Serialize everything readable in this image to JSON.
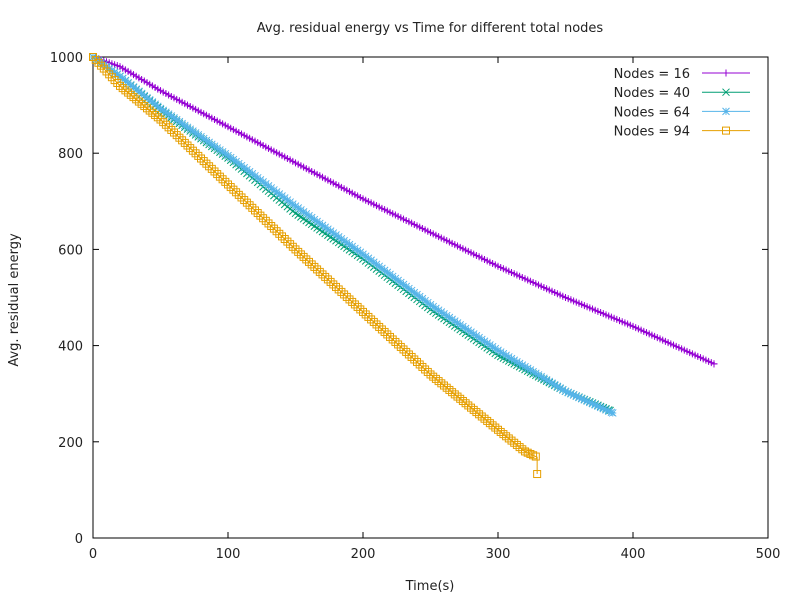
{
  "chart_data": {
    "type": "line",
    "title": "Avg. residual energy vs Time for different total nodes",
    "xlabel": "Time(s)",
    "ylabel": "Avg. residual energy",
    "xlim": [
      0,
      500
    ],
    "ylim": [
      0,
      1000
    ],
    "xticks": [
      "0",
      "100",
      "200",
      "300",
      "400",
      "500"
    ],
    "yticks": [
      "0",
      "200",
      "400",
      "600",
      "800",
      "1000"
    ],
    "grid": false,
    "legend_position": "top-right",
    "series": [
      {
        "name": "Nodes = 16",
        "color": "#9400d3",
        "marker": "plus",
        "x": [
          0,
          20,
          50,
          100,
          150,
          200,
          250,
          300,
          350,
          400,
          460
        ],
        "y": [
          1000,
          980,
          930,
          855,
          780,
          705,
          635,
          565,
          500,
          440,
          362
        ]
      },
      {
        "name": "Nodes = 40",
        "color": "#009e73",
        "marker": "cross",
        "x": [
          0,
          20,
          50,
          100,
          150,
          200,
          250,
          300,
          350,
          383
        ],
        "y": [
          1000,
          960,
          890,
          790,
          675,
          580,
          475,
          380,
          305,
          265
        ]
      },
      {
        "name": "Nodes = 64",
        "color": "#56b4e9",
        "marker": "star",
        "x": [
          0,
          20,
          50,
          100,
          150,
          200,
          250,
          300,
          350,
          385
        ],
        "y": [
          1000,
          960,
          893,
          795,
          690,
          590,
          485,
          390,
          305,
          260
        ]
      },
      {
        "name": "Nodes = 94",
        "color": "#e69f00",
        "marker": "square",
        "x": [
          0,
          20,
          50,
          100,
          150,
          200,
          250,
          300,
          320,
          329,
          329
        ],
        "y": [
          1000,
          940,
          870,
          735,
          600,
          470,
          340,
          225,
          180,
          168,
          133
        ]
      }
    ]
  }
}
